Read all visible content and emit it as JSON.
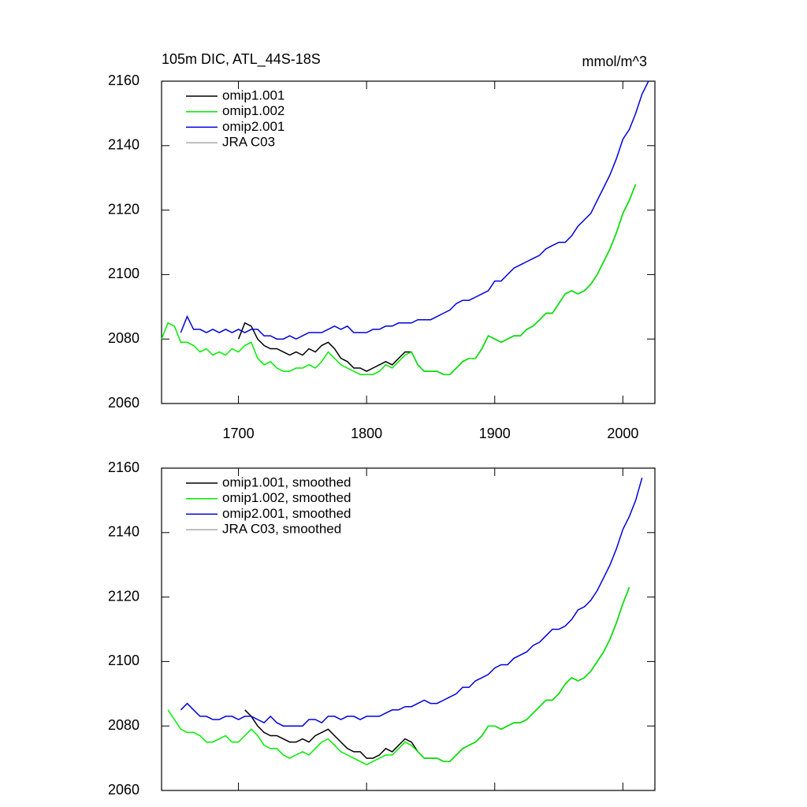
{
  "chart_data": [
    {
      "type": "line",
      "title": "105m DIC, ATL_44S-18S",
      "units": "mmol/m^3",
      "x": [
        1640,
        1645,
        1650,
        1655,
        1660,
        1665,
        1670,
        1675,
        1680,
        1685,
        1690,
        1695,
        1700,
        1705,
        1710,
        1715,
        1720,
        1725,
        1730,
        1735,
        1740,
        1745,
        1750,
        1755,
        1760,
        1765,
        1770,
        1775,
        1780,
        1785,
        1790,
        1795,
        1800,
        1805,
        1810,
        1815,
        1820,
        1825,
        1830,
        1835,
        1840,
        1845,
        1850,
        1855,
        1860,
        1865,
        1870,
        1875,
        1880,
        1885,
        1890,
        1895,
        1900,
        1905,
        1910,
        1915,
        1920,
        1925,
        1930,
        1935,
        1940,
        1945,
        1950,
        1955,
        1960,
        1965,
        1970,
        1975,
        1980,
        1985,
        1990,
        1995,
        2000,
        2005,
        2010,
        2015,
        2020
      ],
      "xlim": [
        1640,
        2025
      ],
      "xticks": [
        1700,
        1800,
        1900,
        2000
      ],
      "ylim": [
        2060,
        2160
      ],
      "yticks": [
        2060,
        2080,
        2100,
        2120,
        2140,
        2160
      ],
      "legend": "upper left",
      "series": [
        {
          "name": "omip1.001",
          "color": "#000000",
          "values": [
            null,
            null,
            null,
            null,
            null,
            null,
            null,
            null,
            null,
            null,
            null,
            null,
            2080,
            2085,
            2084,
            2080,
            2078,
            2077,
            2077,
            2076,
            2075,
            2076,
            2075,
            2077,
            2076,
            2078,
            2079,
            2077,
            2074,
            2073,
            2071,
            2071,
            2070,
            2071,
            2072,
            2073,
            2072,
            2074,
            2076,
            2076,
            2072,
            2070,
            2070,
            2070,
            2069,
            2069,
            2071,
            2073,
            2074,
            2074,
            2077,
            2081,
            2080,
            2079,
            2080,
            2081,
            2081,
            2083,
            2084,
            2086,
            2088,
            2088,
            2091,
            2094,
            2095,
            2094,
            2095,
            2097,
            2100,
            2104,
            2108,
            2113,
            2119,
            2123,
            2128,
            null,
            null
          ]
        },
        {
          "name": "omip1.002",
          "color": "#00ee00",
          "values": [
            2080,
            2085,
            2084,
            2079,
            2079,
            2078,
            2076,
            2077,
            2075,
            2076,
            2075,
            2077,
            2076,
            2078,
            2079,
            2074,
            2072,
            2073,
            2071,
            2070,
            2070,
            2071,
            2071,
            2072,
            2071,
            2073,
            2076,
            2074,
            2072,
            2071,
            2070,
            2069,
            2069,
            2069,
            2070,
            2072,
            2071,
            2073,
            2075,
            2076,
            2072,
            2070,
            2070,
            2070,
            2069,
            2069,
            2071,
            2073,
            2074,
            2074,
            2077,
            2081,
            2080,
            2079,
            2080,
            2081,
            2081,
            2083,
            2084,
            2086,
            2088,
            2088,
            2091,
            2094,
            2095,
            2094,
            2095,
            2097,
            2100,
            2104,
            2108,
            2113,
            2119,
            2123,
            2128,
            null,
            null
          ]
        },
        {
          "name": "omip2.001",
          "color": "#0000dd",
          "values": [
            null,
            null,
            null,
            2082,
            2087,
            2083,
            2083,
            2082,
            2083,
            2082,
            2083,
            2082,
            2083,
            2082,
            2083,
            2083,
            2081,
            2081,
            2080,
            2080,
            2081,
            2080,
            2081,
            2082,
            2082,
            2082,
            2083,
            2084,
            2083,
            2084,
            2082,
            2082,
            2082,
            2083,
            2083,
            2084,
            2084,
            2085,
            2085,
            2085,
            2086,
            2086,
            2086,
            2087,
            2088,
            2089,
            2091,
            2092,
            2092,
            2093,
            2094,
            2095,
            2098,
            2098,
            2100,
            2102,
            2103,
            2104,
            2105,
            2106,
            2108,
            2109,
            2110,
            2110,
            2112,
            2115,
            2117,
            2119,
            2123,
            2127,
            2131,
            2136,
            2142,
            2145,
            2150,
            2156,
            2160
          ]
        },
        {
          "name": "JRA C03",
          "color": "#aaaaaa",
          "values": [
            null,
            null,
            null,
            null,
            null,
            null,
            null,
            null,
            null,
            null,
            null,
            null,
            null,
            null,
            null,
            null,
            null,
            null,
            null,
            null,
            null,
            null,
            null,
            null,
            null,
            null,
            null,
            null,
            null,
            null,
            null,
            null,
            null,
            null,
            null,
            null,
            null,
            null,
            null,
            null,
            null,
            null,
            null,
            null,
            null,
            null,
            null,
            null,
            null,
            null,
            null,
            null,
            null,
            null,
            null,
            null,
            null,
            null,
            null,
            null,
            null,
            null,
            null,
            null,
            null,
            null,
            null,
            null,
            null,
            null,
            null,
            null,
            null,
            null,
            null,
            null,
            null
          ]
        }
      ]
    },
    {
      "type": "line",
      "x": [
        1640,
        1645,
        1650,
        1655,
        1660,
        1665,
        1670,
        1675,
        1680,
        1685,
        1690,
        1695,
        1700,
        1705,
        1710,
        1715,
        1720,
        1725,
        1730,
        1735,
        1740,
        1745,
        1750,
        1755,
        1760,
        1765,
        1770,
        1775,
        1780,
        1785,
        1790,
        1795,
        1800,
        1805,
        1810,
        1815,
        1820,
        1825,
        1830,
        1835,
        1840,
        1845,
        1850,
        1855,
        1860,
        1865,
        1870,
        1875,
        1880,
        1885,
        1890,
        1895,
        1900,
        1905,
        1910,
        1915,
        1920,
        1925,
        1930,
        1935,
        1940,
        1945,
        1950,
        1955,
        1960,
        1965,
        1970,
        1975,
        1980,
        1985,
        1990,
        1995,
        2000,
        2005,
        2010,
        2015,
        2020
      ],
      "xlim": [
        1640,
        2025
      ],
      "xticks": [
        1700,
        1800,
        1900,
        2000
      ],
      "ylim": [
        2060,
        2160
      ],
      "yticks": [
        2060,
        2080,
        2100,
        2120,
        2140,
        2160
      ],
      "legend": "upper left",
      "series": [
        {
          "name": "omip1.001, smoothed",
          "color": "#000000",
          "values": [
            null,
            null,
            null,
            null,
            null,
            null,
            null,
            null,
            null,
            null,
            null,
            null,
            null,
            2085,
            2083,
            2080,
            2078,
            2077,
            2077,
            2076,
            2075,
            2075,
            2076,
            2075,
            2077,
            2078,
            2079,
            2077,
            2075,
            2073,
            2072,
            2072,
            2070,
            2070,
            2071,
            2073,
            2072,
            2074,
            2076,
            2075,
            2072,
            2070,
            2070,
            2070,
            2069,
            2069,
            2071,
            2073,
            2074,
            2075,
            2077,
            2080,
            2080,
            2079,
            2080,
            2081,
            2081,
            2082,
            2084,
            2086,
            2088,
            2088,
            2090,
            2093,
            2095,
            2094,
            2095,
            2097,
            2100,
            2103,
            2107,
            2112,
            2118,
            2123,
            null,
            null,
            null
          ]
        },
        {
          "name": "omip1.002, smoothed",
          "color": "#00ee00",
          "values": [
            null,
            2085,
            2082,
            2079,
            2078,
            2078,
            2077,
            2075,
            2075,
            2076,
            2077,
            2075,
            2075,
            2077,
            2079,
            2077,
            2074,
            2073,
            2073,
            2071,
            2070,
            2071,
            2072,
            2071,
            2073,
            2075,
            2076,
            2074,
            2072,
            2071,
            2070,
            2069,
            2068,
            2069,
            2070,
            2071,
            2071,
            2073,
            2075,
            2074,
            2072,
            2070,
            2070,
            2070,
            2069,
            2069,
            2071,
            2073,
            2074,
            2075,
            2077,
            2080,
            2080,
            2079,
            2080,
            2081,
            2081,
            2082,
            2084,
            2086,
            2088,
            2088,
            2090,
            2093,
            2095,
            2094,
            2095,
            2097,
            2100,
            2103,
            2107,
            2112,
            2118,
            2123,
            null,
            null,
            null
          ]
        },
        {
          "name": "omip2.001, smoothed",
          "color": "#0000dd",
          "values": [
            null,
            null,
            null,
            2085,
            2087,
            2085,
            2083,
            2083,
            2082,
            2082,
            2083,
            2083,
            2082,
            2083,
            2083,
            2082,
            2081,
            2083,
            2081,
            2080,
            2080,
            2080,
            2080,
            2082,
            2082,
            2081,
            2083,
            2083,
            2082,
            2083,
            2083,
            2082,
            2083,
            2083,
            2083,
            2084,
            2085,
            2085,
            2086,
            2086,
            2087,
            2088,
            2087,
            2087,
            2088,
            2089,
            2090,
            2092,
            2092,
            2094,
            2095,
            2096,
            2098,
            2099,
            2099,
            2101,
            2102,
            2103,
            2105,
            2106,
            2108,
            2110,
            2110,
            2111,
            2113,
            2116,
            2117,
            2119,
            2122,
            2126,
            2130,
            2135,
            2141,
            2145,
            2150,
            2157,
            null
          ]
        },
        {
          "name": "JRA C03, smoothed",
          "color": "#aaaaaa",
          "values": [
            null,
            null,
            null,
            null,
            null,
            null,
            null,
            null,
            null,
            null,
            null,
            null,
            null,
            null,
            null,
            null,
            null,
            null,
            null,
            null,
            null,
            null,
            null,
            null,
            null,
            null,
            null,
            null,
            null,
            null,
            null,
            null,
            null,
            null,
            null,
            null,
            null,
            null,
            null,
            null,
            null,
            null,
            null,
            null,
            null,
            null,
            null,
            null,
            null,
            null,
            null,
            null,
            null,
            null,
            null,
            null,
            null,
            null,
            null,
            null,
            null,
            null,
            null,
            null,
            null,
            null,
            null,
            null,
            null,
            null,
            null,
            null,
            null,
            null,
            null,
            null,
            null
          ]
        }
      ]
    }
  ]
}
